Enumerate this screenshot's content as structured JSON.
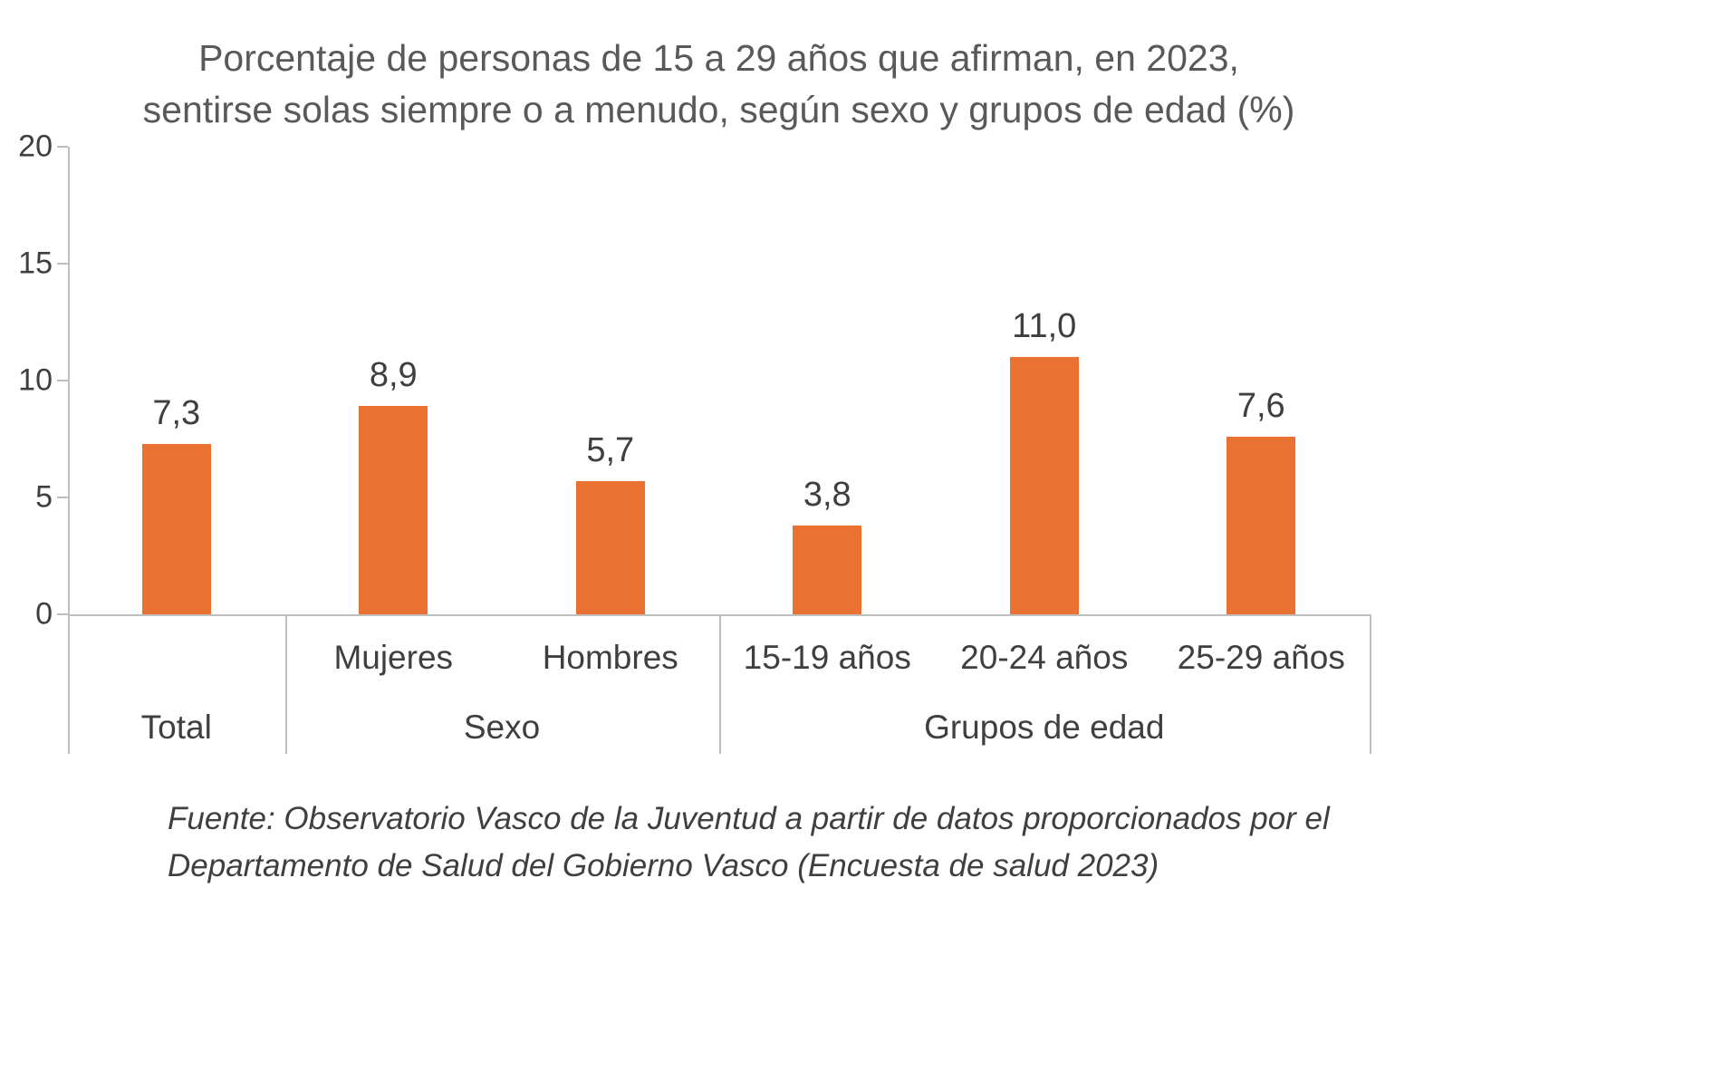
{
  "title": {
    "line1": "Porcentaje de personas de 15 a 29 años que afirman, en 2023,",
    "line2": "sentirse solas siempre o a menudo, según sexo y grupos de edad (%)"
  },
  "chart_data": {
    "type": "bar",
    "categories": [
      "Total",
      "Mujeres",
      "Hombres",
      "15-19 años",
      "20-24 años",
      "25-29 años"
    ],
    "values": [
      7.3,
      8.9,
      5.7,
      3.8,
      11.0,
      7.6
    ],
    "value_labels": [
      "7,3",
      "8,9",
      "5,7",
      "3,8",
      "11,0",
      "7,6"
    ],
    "item_axis_labels": [
      "",
      "Mujeres",
      "Hombres",
      "15-19 años",
      "20-24 años",
      "25-29 años"
    ],
    "groups": [
      {
        "label": "Total",
        "span": 1
      },
      {
        "label": "Sexo",
        "span": 2
      },
      {
        "label": "Grupos de edad",
        "span": 3
      }
    ],
    "y_ticks": [
      0,
      5,
      10,
      15,
      20
    ],
    "ylim": [
      0,
      20
    ],
    "grid": false,
    "legend": "none",
    "bar_color": "#E97132",
    "axis_color": "#bfbfbf",
    "title": "Porcentaje de personas de 15 a 29 años que afirman, en 2023, sentirse solas siempre o a menudo, según sexo y grupos de edad (%)"
  },
  "footer": {
    "line1": "Fuente: Observatorio Vasco de la Juventud a partir de datos proporcionados por el",
    "line2": "Departamento de Salud del Gobierno Vasco (Encuesta de salud 2023)"
  }
}
